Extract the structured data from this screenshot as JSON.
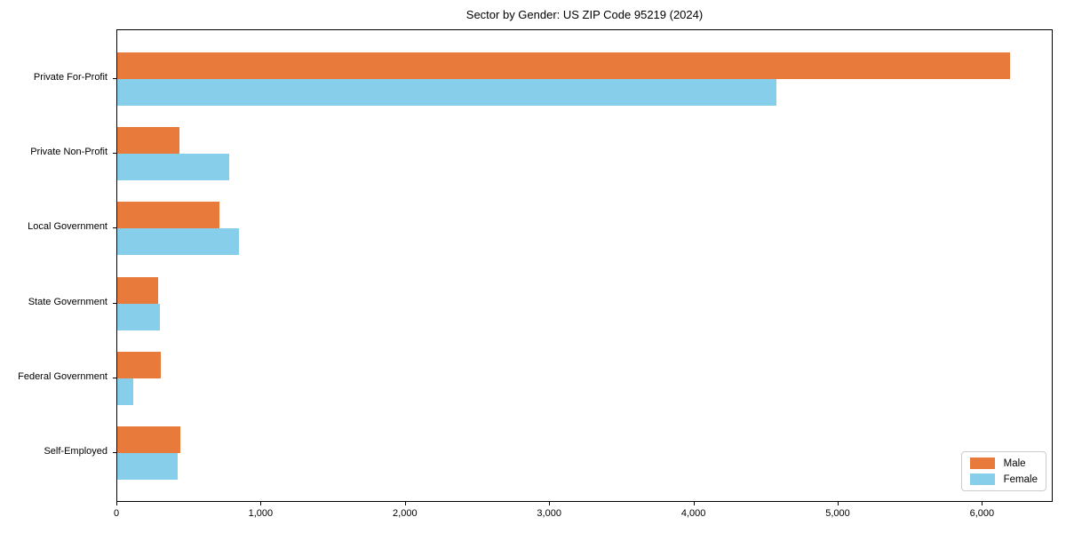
{
  "title": "Sector by Gender: US ZIP Code 95219 (2024)",
  "colors": {
    "male": "#E87A3C",
    "female": "#87CEEB",
    "axis": "#000000",
    "legend_border": "#cccccc",
    "background": "#ffffff"
  },
  "legend": {
    "items": [
      {
        "label": "Male",
        "color": "#E87A3C"
      },
      {
        "label": "Female",
        "color": "#87CEEB"
      }
    ],
    "position": "lower right"
  },
  "chart_data": {
    "type": "bar",
    "orientation": "horizontal",
    "title": "Sector by Gender: US ZIP Code 95219 (2024)",
    "categories": [
      "Private For-Profit",
      "Private Non-Profit",
      "Local Government",
      "State Government",
      "Federal Government",
      "Self-Employed"
    ],
    "series": [
      {
        "name": "Male",
        "color": "#E87A3C",
        "values": [
          6190,
          430,
          710,
          280,
          300,
          435
        ]
      },
      {
        "name": "Female",
        "color": "#87CEEB",
        "values": [
          4570,
          775,
          845,
          295,
          110,
          420
        ]
      }
    ],
    "xlabel": "",
    "ylabel": "",
    "xlim": [
      0,
      6490
    ],
    "xtick_values": [
      0,
      1000,
      2000,
      3000,
      4000,
      5000,
      6000
    ],
    "xtick_labels": [
      "0",
      "1,000",
      "2,000",
      "3,000",
      "4,000",
      "5,000",
      "6,000"
    ],
    "grid": false,
    "legend_position": "lower right"
  }
}
